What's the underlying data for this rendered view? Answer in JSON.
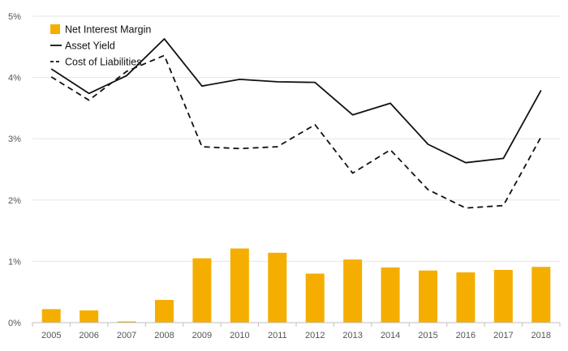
{
  "chart_data": {
    "type": "bar",
    "categories": [
      "2005",
      "2006",
      "2007",
      "2008",
      "2009",
      "2010",
      "2011",
      "2012",
      "2013",
      "2014",
      "2015",
      "2016",
      "2017",
      "2018"
    ],
    "ylim": [
      0,
      5
    ],
    "yticks": [
      0,
      1,
      2,
      3,
      4,
      5
    ],
    "ytick_labels": [
      "0%",
      "1%",
      "2%",
      "3%",
      "4%",
      "5%"
    ],
    "grid": "horizontal",
    "legend_position": "top-left",
    "series": [
      {
        "name": "Net Interest Margin",
        "type": "bar",
        "color": "#F5AE00",
        "values": [
          0.22,
          0.2,
          0.02,
          0.37,
          1.05,
          1.21,
          1.14,
          0.8,
          1.03,
          0.9,
          0.85,
          0.82,
          0.86,
          0.91
        ]
      },
      {
        "name": "Asset Yield",
        "type": "line",
        "style": "solid",
        "color": "#111111",
        "values": [
          4.14,
          3.74,
          4.03,
          4.63,
          3.86,
          3.97,
          3.93,
          3.92,
          3.39,
          3.58,
          2.91,
          2.61,
          2.68,
          3.79
        ]
      },
      {
        "name": "Cost of Liabilities",
        "type": "line",
        "style": "dashed",
        "color": "#111111",
        "values": [
          4.01,
          3.63,
          4.1,
          4.36,
          2.87,
          2.84,
          2.87,
          3.23,
          2.44,
          2.82,
          2.17,
          1.87,
          1.91,
          3.03
        ]
      }
    ]
  }
}
